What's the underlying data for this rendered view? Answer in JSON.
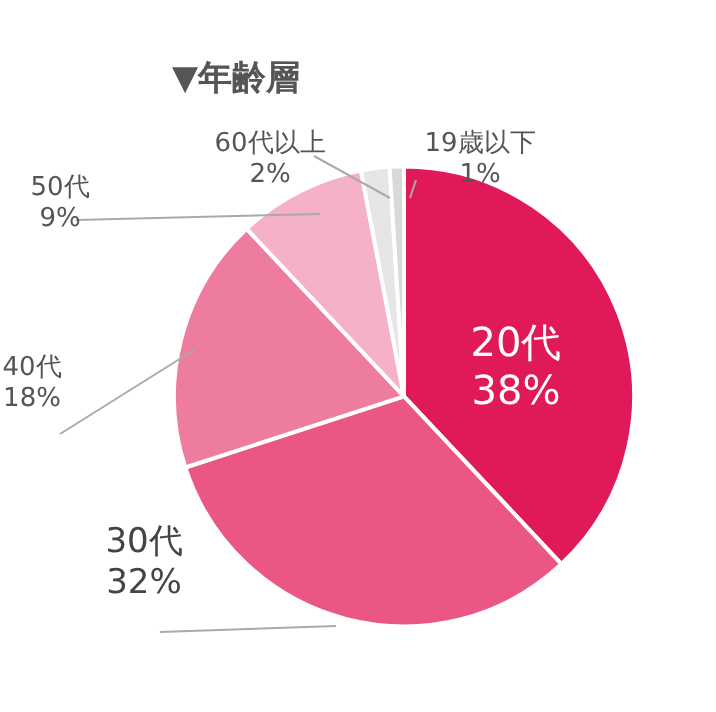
{
  "chart_data": {
    "type": "pie",
    "title": "▼年齢層",
    "categories": [
      "20代",
      "30代",
      "40代",
      "50代",
      "60代以上",
      "19歳以下"
    ],
    "values": [
      38,
      32,
      18,
      9,
      2,
      1
    ],
    "colors": [
      "#e01a58",
      "#ea5784",
      "#ee7c9e",
      "#f5b2c6",
      "#e6e6e6",
      "#d9d9d9"
    ],
    "value_labels": [
      "38%",
      "32%",
      "18%",
      "9%",
      "2%",
      "1%"
    ],
    "legend": false
  }
}
